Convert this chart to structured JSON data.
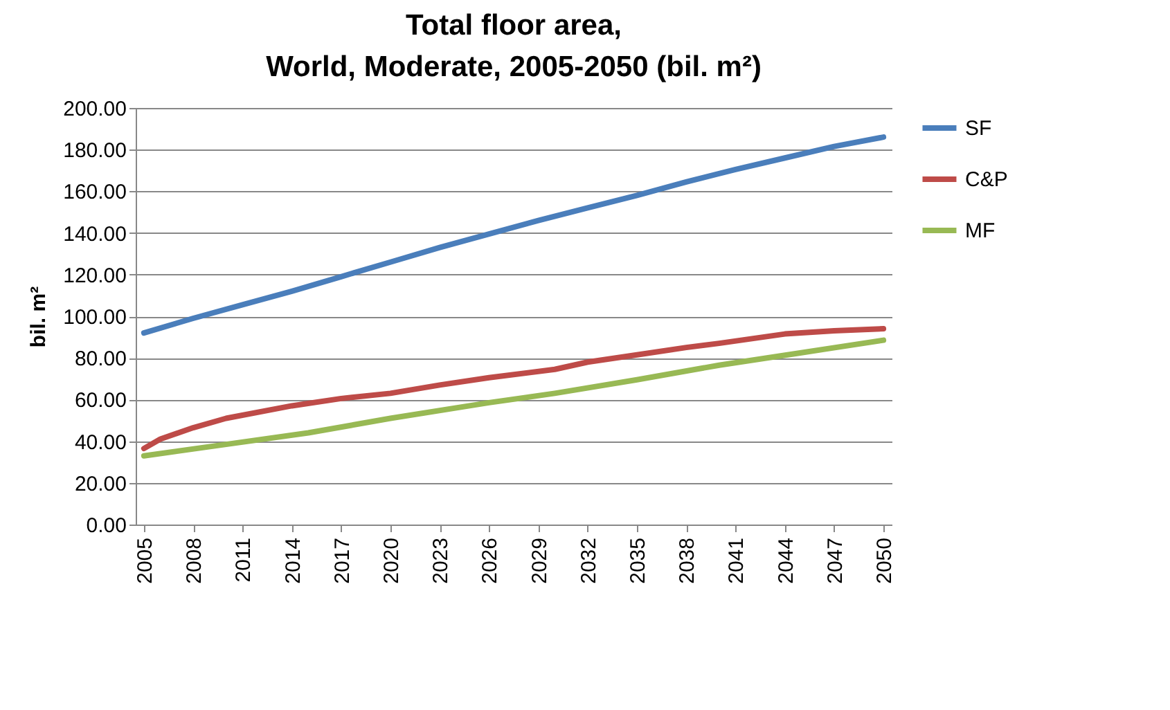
{
  "chart_data": {
    "type": "line",
    "title": "Total floor area,\nWorld, Moderate, 2005-2050 (bil. m²)",
    "ylabel": "bil. m²",
    "xlim": [
      2004.5,
      2050.5
    ],
    "xticks": [
      2005,
      2008,
      2011,
      2014,
      2017,
      2020,
      2023,
      2026,
      2029,
      2032,
      2035,
      2038,
      2041,
      2044,
      2047,
      2050
    ],
    "ylim": [
      0,
      200
    ],
    "yticks": [
      {
        "value": 0,
        "label": "0.00"
      },
      {
        "value": 20,
        "label": "20.00"
      },
      {
        "value": 40,
        "label": "40.00"
      },
      {
        "value": 60,
        "label": "60.00"
      },
      {
        "value": 80,
        "label": "80.00"
      },
      {
        "value": 100,
        "label": "100.00"
      },
      {
        "value": 120,
        "label": "120.00"
      },
      {
        "value": 140,
        "label": "140.00"
      },
      {
        "value": 160,
        "label": "160.00"
      },
      {
        "value": 180,
        "label": "180.00"
      },
      {
        "value": 200,
        "label": "200.00"
      }
    ],
    "grid": "y",
    "legend": "right",
    "marker": "none",
    "line_style": "solid",
    "series": [
      {
        "name": "SF",
        "color": "#4a7ebb",
        "x": [
          2005,
          2008,
          2011,
          2014,
          2017,
          2020,
          2023,
          2026,
          2029,
          2032,
          2035,
          2038,
          2041,
          2044,
          2047,
          2050
        ],
        "values": [
          92,
          99,
          105.5,
          112,
          119,
          126,
          133,
          139.5,
          146,
          152,
          158,
          164.5,
          170.5,
          176,
          181.5,
          186
        ]
      },
      {
        "name": "C&P",
        "color": "#be4b48",
        "x": [
          2005,
          2006,
          2008,
          2010,
          2014,
          2017,
          2020,
          2023,
          2026,
          2030,
          2032,
          2035,
          2038,
          2040,
          2044,
          2047,
          2050
        ],
        "values": [
          36.5,
          41,
          46.5,
          51,
          57,
          60.5,
          63,
          67,
          70.5,
          74.5,
          78,
          81.5,
          85,
          87,
          91.5,
          93,
          94
        ]
      },
      {
        "name": "MF",
        "color": "#98b954",
        "x": [
          2005,
          2010,
          2015,
          2020,
          2026,
          2030,
          2035,
          2040,
          2045,
          2050
        ],
        "values": [
          33,
          38.5,
          44,
          51,
          58.5,
          63,
          69.5,
          76.5,
          82.5,
          88.5
        ]
      }
    ]
  }
}
